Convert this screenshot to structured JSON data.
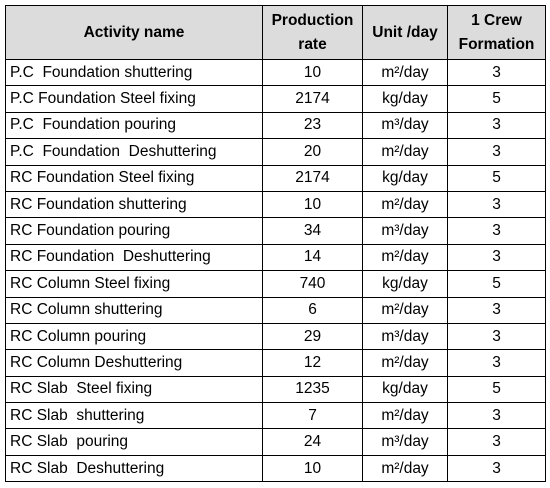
{
  "table": {
    "header": [
      "Activity name",
      "Production rate",
      "Unit /day",
      "1 Crew Formation"
    ],
    "rows": [
      [
        "P.C  Foundation shuttering",
        10,
        "m²/day",
        3
      ],
      [
        "P.C Foundation Steel fixing",
        2174,
        "kg/day",
        5
      ],
      [
        "P.C  Foundation pouring",
        23,
        "m³/day",
        3
      ],
      [
        "P.C  Foundation  Deshuttering",
        20,
        "m²/day",
        3
      ],
      [
        "RC Foundation Steel fixing",
        2174,
        "kg/day",
        5
      ],
      [
        "RC Foundation shuttering",
        10,
        "m²/day",
        3
      ],
      [
        "RC Foundation pouring",
        34,
        "m³/day",
        3
      ],
      [
        "RC Foundation  Deshuttering",
        14,
        "m²/day",
        3
      ],
      [
        "RC Column Steel fixing",
        740,
        "kg/day",
        5
      ],
      [
        "RC Column shuttering",
        6,
        "m²/day",
        3
      ],
      [
        "RC Column pouring",
        29,
        "m³/day",
        3
      ],
      [
        "RC Column Deshuttering",
        12,
        "m²/day",
        3
      ],
      [
        "RC Slab  Steel fixing",
        1235,
        "kg/day",
        5
      ],
      [
        "RC Slab  shuttering",
        7,
        "m²/day",
        3
      ],
      [
        "RC Slab  pouring",
        24,
        "m³/day",
        3
      ],
      [
        "RC Slab  Deshuttering",
        10,
        "m²/day",
        3
      ]
    ]
  }
}
